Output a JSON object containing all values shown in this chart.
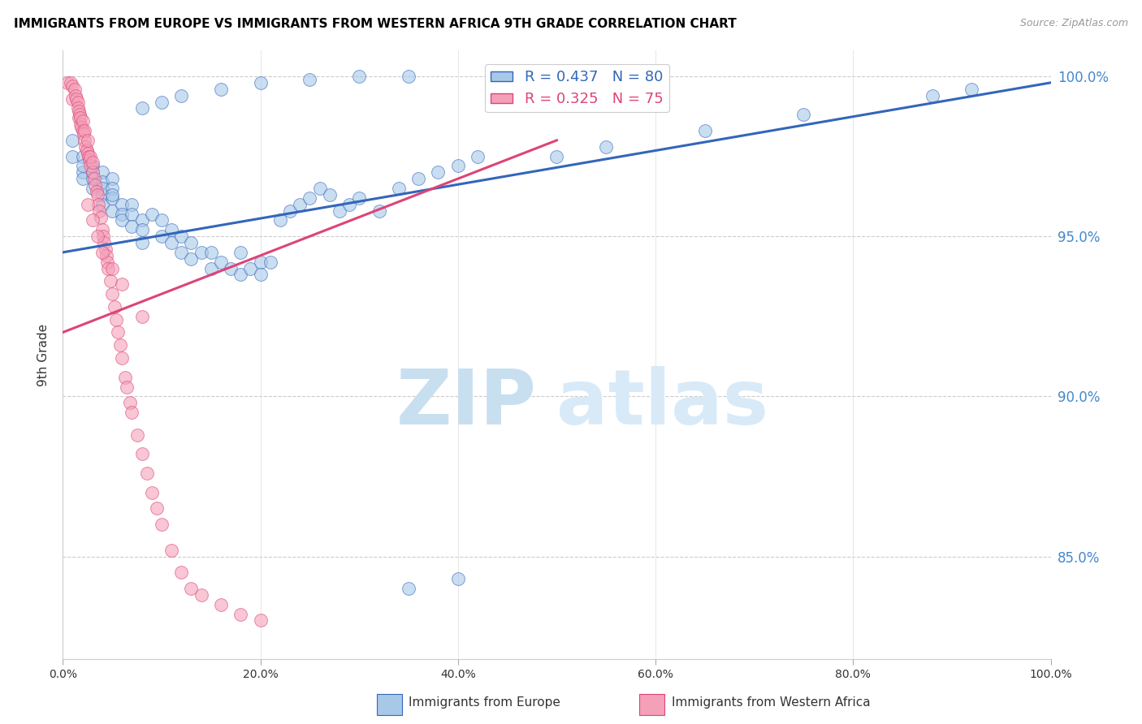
{
  "title": "IMMIGRANTS FROM EUROPE VS IMMIGRANTS FROM WESTERN AFRICA 9TH GRADE CORRELATION CHART",
  "source": "Source: ZipAtlas.com",
  "ylabel": "9th Grade",
  "ytick_labels": [
    "85.0%",
    "90.0%",
    "95.0%",
    "100.0%"
  ],
  "ytick_values": [
    0.85,
    0.9,
    0.95,
    1.0
  ],
  "xlim": [
    0.0,
    1.0
  ],
  "ylim": [
    0.818,
    1.008
  ],
  "legend_blue_r": "R = 0.437",
  "legend_blue_n": "N = 80",
  "legend_pink_r": "R = 0.325",
  "legend_pink_n": "N = 75",
  "blue_color": "#a8c8e8",
  "pink_color": "#f4a0b8",
  "trend_blue": "#3366bb",
  "trend_pink": "#dd4477",
  "watermark_zip": "ZIP",
  "watermark_atlas": "atlas",
  "watermark_color_zip": "#c8dff0",
  "watermark_color_atlas": "#d8eaf8",
  "blue_scatter_x": [
    0.01,
    0.01,
    0.02,
    0.02,
    0.02,
    0.02,
    0.03,
    0.03,
    0.03,
    0.03,
    0.04,
    0.04,
    0.04,
    0.04,
    0.04,
    0.05,
    0.05,
    0.05,
    0.05,
    0.05,
    0.06,
    0.06,
    0.06,
    0.07,
    0.07,
    0.07,
    0.08,
    0.08,
    0.08,
    0.09,
    0.1,
    0.1,
    0.11,
    0.11,
    0.12,
    0.12,
    0.13,
    0.13,
    0.14,
    0.15,
    0.15,
    0.16,
    0.17,
    0.18,
    0.18,
    0.19,
    0.2,
    0.2,
    0.21,
    0.22,
    0.23,
    0.24,
    0.25,
    0.26,
    0.27,
    0.28,
    0.29,
    0.3,
    0.32,
    0.34,
    0.36,
    0.38,
    0.4,
    0.42,
    0.08,
    0.1,
    0.12,
    0.16,
    0.2,
    0.25,
    0.3,
    0.35,
    0.5,
    0.55,
    0.65,
    0.75,
    0.88,
    0.92,
    0.35,
    0.4
  ],
  "blue_scatter_y": [
    0.98,
    0.975,
    0.975,
    0.97,
    0.968,
    0.972,
    0.972,
    0.968,
    0.965,
    0.97,
    0.97,
    0.967,
    0.963,
    0.96,
    0.965,
    0.968,
    0.965,
    0.962,
    0.958,
    0.963,
    0.96,
    0.957,
    0.955,
    0.96,
    0.957,
    0.953,
    0.955,
    0.952,
    0.948,
    0.957,
    0.955,
    0.95,
    0.952,
    0.948,
    0.945,
    0.95,
    0.948,
    0.943,
    0.945,
    0.945,
    0.94,
    0.942,
    0.94,
    0.945,
    0.938,
    0.94,
    0.942,
    0.938,
    0.942,
    0.955,
    0.958,
    0.96,
    0.962,
    0.965,
    0.963,
    0.958,
    0.96,
    0.962,
    0.958,
    0.965,
    0.968,
    0.97,
    0.972,
    0.975,
    0.99,
    0.992,
    0.994,
    0.996,
    0.998,
    0.999,
    1.0,
    1.0,
    0.975,
    0.978,
    0.983,
    0.988,
    0.994,
    0.996,
    0.84,
    0.843
  ],
  "pink_scatter_x": [
    0.005,
    0.008,
    0.01,
    0.01,
    0.012,
    0.013,
    0.014,
    0.015,
    0.015,
    0.016,
    0.016,
    0.017,
    0.018,
    0.018,
    0.019,
    0.02,
    0.02,
    0.021,
    0.022,
    0.022,
    0.023,
    0.024,
    0.025,
    0.025,
    0.026,
    0.027,
    0.028,
    0.028,
    0.03,
    0.03,
    0.032,
    0.033,
    0.034,
    0.035,
    0.036,
    0.037,
    0.038,
    0.04,
    0.041,
    0.042,
    0.043,
    0.044,
    0.045,
    0.046,
    0.048,
    0.05,
    0.052,
    0.054,
    0.056,
    0.058,
    0.06,
    0.063,
    0.065,
    0.068,
    0.07,
    0.075,
    0.08,
    0.085,
    0.09,
    0.095,
    0.1,
    0.11,
    0.12,
    0.13,
    0.14,
    0.16,
    0.18,
    0.2,
    0.025,
    0.03,
    0.035,
    0.04,
    0.05,
    0.06,
    0.08
  ],
  "pink_scatter_y": [
    0.998,
    0.998,
    0.997,
    0.993,
    0.996,
    0.994,
    0.993,
    0.992,
    0.99,
    0.989,
    0.987,
    0.988,
    0.985,
    0.987,
    0.984,
    0.983,
    0.986,
    0.982,
    0.98,
    0.983,
    0.978,
    0.977,
    0.976,
    0.98,
    0.975,
    0.974,
    0.972,
    0.975,
    0.97,
    0.973,
    0.968,
    0.966,
    0.964,
    0.963,
    0.96,
    0.958,
    0.956,
    0.952,
    0.95,
    0.948,
    0.946,
    0.944,
    0.942,
    0.94,
    0.936,
    0.932,
    0.928,
    0.924,
    0.92,
    0.916,
    0.912,
    0.906,
    0.903,
    0.898,
    0.895,
    0.888,
    0.882,
    0.876,
    0.87,
    0.865,
    0.86,
    0.852,
    0.845,
    0.84,
    0.838,
    0.835,
    0.832,
    0.83,
    0.96,
    0.955,
    0.95,
    0.945,
    0.94,
    0.935,
    0.925
  ],
  "blue_trend_x0": 0.0,
  "blue_trend_y0": 0.945,
  "blue_trend_x1": 1.0,
  "blue_trend_y1": 0.998,
  "pink_trend_x0": 0.0,
  "pink_trend_y0": 0.92,
  "pink_trend_x1": 0.5,
  "pink_trend_y1": 0.98
}
